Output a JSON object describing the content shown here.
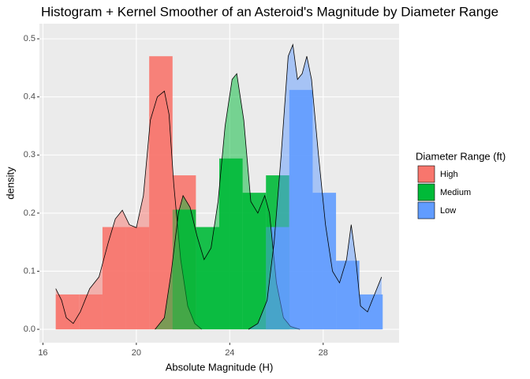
{
  "chart_data": {
    "type": "histogram",
    "title": "Histogram + Kernel Smoother of an Asteroid's Magnitude by Diameter Range",
    "x_label": "Absolute Magnitude (H)",
    "y_label": "density",
    "legend_title": "Diameter Range (ft)",
    "legend_position": "right",
    "grid": true,
    "bins": [
      16.55,
      17.55,
      18.55,
      19.55,
      20.55,
      21.55,
      22.55,
      23.55,
      24.55,
      25.55,
      26.55,
      27.55,
      28.55,
      29.55,
      30.55
    ],
    "series": [
      {
        "name": "High",
        "color": "#f8766d",
        "values": [
          0.06,
          0.06,
          0.176,
          0.176,
          0.47,
          0.265,
          0,
          0,
          0,
          0,
          0,
          0,
          0,
          0
        ],
        "density": {
          "x": [
            16.55,
            16.8,
            17.0,
            17.3,
            17.6,
            18.0,
            18.4,
            18.8,
            19.1,
            19.4,
            19.7,
            20.0,
            20.3,
            20.6,
            20.9,
            21.2,
            21.4,
            21.6,
            21.9,
            22.2,
            22.5,
            22.8
          ],
          "y": [
            0.07,
            0.05,
            0.02,
            0.01,
            0.03,
            0.07,
            0.09,
            0.15,
            0.19,
            0.205,
            0.18,
            0.175,
            0.23,
            0.36,
            0.4,
            0.41,
            0.37,
            0.25,
            0.12,
            0.04,
            0.01,
            0.0
          ]
        }
      },
      {
        "name": "Medium",
        "color": "#00ba38",
        "values": [
          0,
          0,
          0,
          0,
          0,
          0.206,
          0.176,
          0.294,
          0.235,
          0.265,
          0,
          0,
          0,
          0
        ],
        "density": {
          "x": [
            20.8,
            21.2,
            21.5,
            21.8,
            22.0,
            22.3,
            22.6,
            22.9,
            23.2,
            23.5,
            23.8,
            24.1,
            24.3,
            24.6,
            24.9,
            25.2,
            25.5,
            25.7,
            26.0,
            26.3,
            26.6,
            27.0
          ],
          "y": [
            0.0,
            0.02,
            0.1,
            0.2,
            0.23,
            0.21,
            0.16,
            0.12,
            0.14,
            0.22,
            0.35,
            0.43,
            0.44,
            0.36,
            0.22,
            0.2,
            0.23,
            0.2,
            0.08,
            0.02,
            0.005,
            0.0
          ]
        }
      },
      {
        "name": "Low",
        "color": "#619cff",
        "values": [
          0,
          0,
          0,
          0,
          0,
          0,
          0,
          0,
          0,
          0.176,
          0.412,
          0.235,
          0.118,
          0.06
        ],
        "density": {
          "x": [
            24.8,
            25.2,
            25.6,
            25.9,
            26.2,
            26.5,
            26.7,
            26.9,
            27.1,
            27.3,
            27.5,
            27.8,
            28.1,
            28.4,
            28.7,
            29.0,
            29.2,
            29.4,
            29.6,
            29.9,
            30.2,
            30.5
          ],
          "y": [
            0.0,
            0.01,
            0.05,
            0.15,
            0.3,
            0.47,
            0.49,
            0.43,
            0.44,
            0.47,
            0.43,
            0.3,
            0.18,
            0.1,
            0.08,
            0.12,
            0.18,
            0.12,
            0.04,
            0.03,
            0.06,
            0.09
          ]
        }
      }
    ],
    "xlim": [
      15.85,
      31.25
    ],
    "ylim": [
      -0.023,
      0.526
    ],
    "xticks": [
      16,
      20,
      24,
      28
    ],
    "yticks": [
      {
        "value": 0,
        "label": "0.0"
      },
      0.1,
      0.2,
      0.3,
      0.4,
      0.5
    ]
  }
}
